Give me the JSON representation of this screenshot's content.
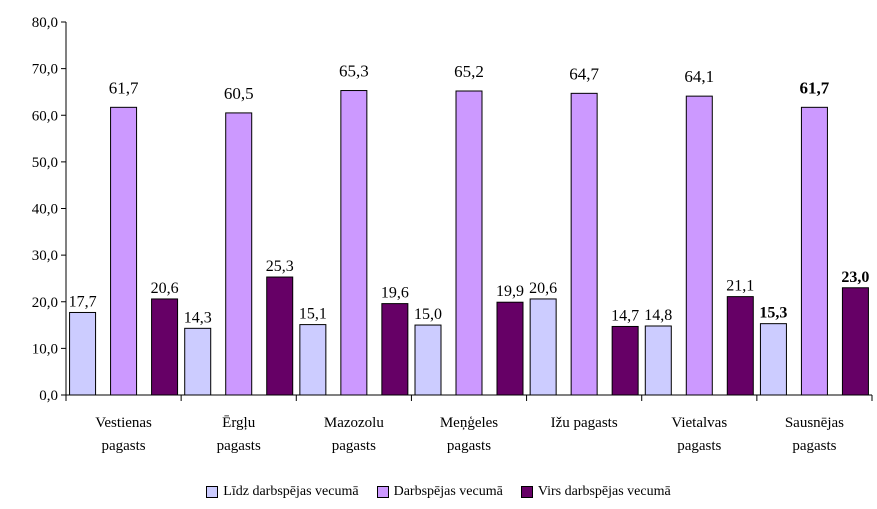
{
  "chart_data": {
    "type": "bar",
    "categories": [
      [
        "Vestienas",
        "pagasts"
      ],
      [
        "Ērgļu",
        "pagasts"
      ],
      [
        "Mazozolu",
        "pagasts"
      ],
      [
        "Meņģeles",
        "pagasts"
      ],
      [
        "Ižu pagasts"
      ],
      [
        "Vietalvas",
        "pagasts"
      ],
      [
        "Sausnējas",
        "pagasts"
      ]
    ],
    "series": [
      {
        "name": "Līdz darbspējas vecumā",
        "color": "#ccccff",
        "values": [
          17.7,
          14.3,
          15.1,
          15.0,
          20.6,
          14.8,
          15.3
        ],
        "labels": [
          "17,7",
          "14,3",
          "15,1",
          "15,0",
          "20,6",
          "14,8",
          "15,3"
        ]
      },
      {
        "name": "Darbspējas vecumā",
        "color": "#cc99ff",
        "values": [
          61.7,
          60.5,
          65.3,
          65.2,
          64.7,
          64.1,
          61.7
        ],
        "labels": [
          "61,7",
          "60,5",
          "65,3",
          "65,2",
          "64,7",
          "64,1",
          "61,7"
        ]
      },
      {
        "name": "Virs darbspējas vecumā",
        "color": "#660066",
        "values": [
          20.6,
          25.3,
          19.6,
          19.9,
          14.7,
          21.1,
          23.0
        ],
        "labels": [
          "20,6",
          "25,3",
          "19,6",
          "19,9",
          "14,7",
          "21,1",
          "23,0"
        ]
      }
    ],
    "bold_category_index": 6,
    "yticks": [
      "0,0",
      "10,0",
      "20,0",
      "30,0",
      "40,0",
      "50,0",
      "60,0",
      "70,0",
      "80,0"
    ],
    "ylim": [
      0,
      80
    ],
    "grid": false,
    "legend_position": "bottom"
  }
}
